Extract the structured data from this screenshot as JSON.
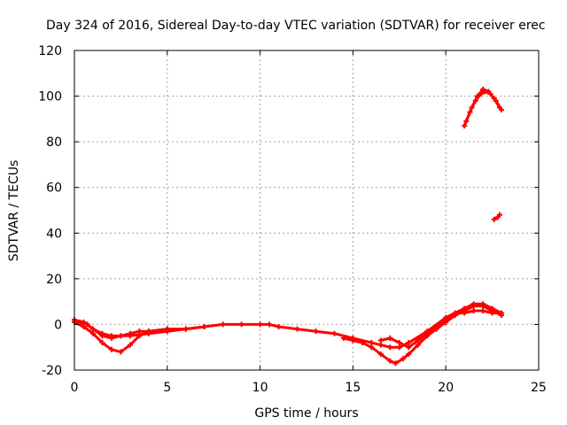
{
  "colors": {
    "series": "#ff0000",
    "grid": "#a0a0a0",
    "axis": "#000000"
  },
  "chart_data": {
    "type": "scatter",
    "title": "Day 324 of 2016, Sidereal Day-to-day VTEC variation (SDTVAR) for receiver erec",
    "xlabel": "GPS time / hours",
    "ylabel": "SDTVAR / TECUs",
    "xlim": [
      0,
      25
    ],
    "ylim": [
      -20,
      120
    ],
    "xticks": [
      0,
      5,
      10,
      15,
      20,
      25
    ],
    "yticks": [
      -20,
      0,
      20,
      40,
      60,
      80,
      100,
      120
    ],
    "grid": true,
    "legend": "none",
    "series": [
      {
        "name": "SDTVAR",
        "segments": [
          [
            [
              0,
              2
            ],
            [
              0.3,
              1
            ],
            [
              0.7,
              0
            ],
            [
              1,
              -2
            ],
            [
              1.5,
              -4
            ],
            [
              2,
              -5
            ],
            [
              2.5,
              -5
            ],
            [
              3,
              -4
            ],
            [
              3.5,
              -3
            ],
            [
              4,
              -3
            ],
            [
              5,
              -2
            ],
            [
              6,
              -2
            ],
            [
              7,
              -1
            ],
            [
              8,
              0
            ],
            [
              9,
              0
            ],
            [
              10,
              0
            ],
            [
              10.5,
              0
            ],
            [
              11,
              -1
            ],
            [
              12,
              -2
            ],
            [
              13,
              -3
            ],
            [
              14,
              -4
            ],
            [
              15,
              -6
            ],
            [
              16,
              -8
            ],
            [
              16.5,
              -9
            ],
            [
              17,
              -10
            ],
            [
              17.5,
              -10
            ],
            [
              18,
              -8
            ],
            [
              19,
              -3
            ],
            [
              20,
              3
            ],
            [
              21,
              7
            ],
            [
              21.5,
              9
            ],
            [
              22,
              9
            ],
            [
              22.5,
              7
            ],
            [
              23,
              5
            ]
          ],
          [
            [
              0,
              1
            ],
            [
              0.5,
              -1
            ],
            [
              1,
              -4
            ],
            [
              1.5,
              -8
            ],
            [
              2,
              -11
            ],
            [
              2.5,
              -12
            ],
            [
              3,
              -9
            ],
            [
              3.5,
              -5
            ],
            [
              4,
              -3
            ],
            [
              5,
              -2
            ]
          ],
          [
            [
              0,
              2
            ],
            [
              0.5,
              1
            ],
            [
              1,
              -2
            ],
            [
              1.5,
              -5
            ],
            [
              2,
              -6
            ],
            [
              2.5,
              -5
            ],
            [
              3,
              -5
            ],
            [
              4,
              -4
            ],
            [
              5,
              -3
            ],
            [
              6,
              -2
            ],
            [
              7,
              -1
            ]
          ],
          [
            [
              14.5,
              -6
            ],
            [
              15,
              -7
            ],
            [
              15.5,
              -8
            ],
            [
              16,
              -10
            ],
            [
              16.5,
              -13
            ],
            [
              17,
              -16
            ],
            [
              17.3,
              -17
            ],
            [
              17.7,
              -15
            ],
            [
              18,
              -13
            ],
            [
              18.5,
              -9
            ],
            [
              19,
              -5
            ],
            [
              19.5,
              -2
            ],
            [
              20,
              1
            ],
            [
              20.5,
              4
            ],
            [
              21,
              6
            ],
            [
              21.5,
              8
            ],
            [
              22,
              8
            ],
            [
              22.5,
              6
            ],
            [
              23,
              4
            ]
          ],
          [
            [
              16.5,
              -7
            ],
            [
              17,
              -6
            ],
            [
              17.5,
              -8
            ],
            [
              18,
              -10
            ],
            [
              18.5,
              -7
            ],
            [
              19,
              -4
            ],
            [
              20,
              2
            ],
            [
              20.5,
              5
            ],
            [
              21,
              5
            ],
            [
              21.5,
              6
            ],
            [
              22,
              6
            ],
            [
              22.5,
              5
            ],
            [
              23,
              5
            ]
          ],
          [
            [
              21,
              87
            ],
            [
              21.3,
              93
            ],
            [
              21.6,
              98
            ],
            [
              21.9,
              101
            ],
            [
              22.1,
              102
            ],
            [
              22.4,
              101
            ],
            [
              22.7,
              98
            ],
            [
              23,
              94
            ]
          ],
          [
            [
              21.1,
              89
            ],
            [
              21.4,
              95
            ],
            [
              21.7,
              100
            ],
            [
              22,
              103
            ],
            [
              22.3,
              102
            ],
            [
              22.6,
              99
            ],
            [
              22.9,
              95
            ]
          ],
          [
            [
              22.6,
              46
            ],
            [
              22.8,
              47
            ],
            [
              22.9,
              48
            ]
          ]
        ]
      }
    ]
  }
}
